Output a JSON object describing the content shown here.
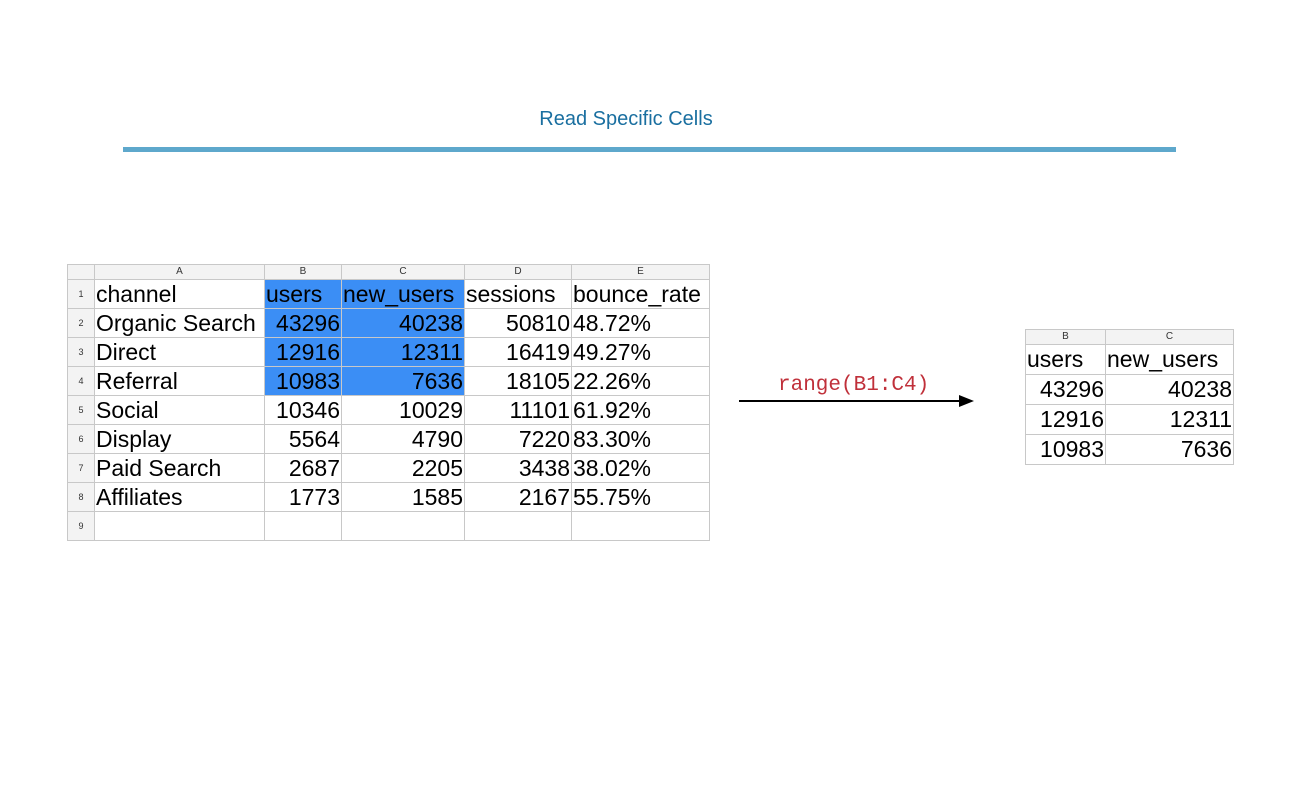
{
  "title": "Read Specific Cells",
  "colors": {
    "accent": "#5ea8cc",
    "title": "#1a6fa0",
    "selection": "#3b8ef5",
    "arrow_label": "#c0303a"
  },
  "main_sheet": {
    "col_headers": [
      "A",
      "B",
      "C",
      "D",
      "E"
    ],
    "rows": [
      {
        "n": "1",
        "cells": [
          "channel",
          "users",
          "new_users",
          "sessions",
          "bounce_rate"
        ]
      },
      {
        "n": "2",
        "cells": [
          "Organic Search",
          "43296",
          "40238",
          "50810",
          "48.72%"
        ]
      },
      {
        "n": "3",
        "cells": [
          "Direct",
          "12916",
          "12311",
          "16419",
          "49.27%"
        ]
      },
      {
        "n": "4",
        "cells": [
          "Referral",
          "10983",
          "7636",
          "18105",
          "22.26%"
        ]
      },
      {
        "n": "5",
        "cells": [
          "Social",
          "10346",
          "10029",
          "11101",
          "61.92%"
        ]
      },
      {
        "n": "6",
        "cells": [
          "Display",
          "5564",
          "4790",
          "7220",
          "83.30%"
        ]
      },
      {
        "n": "7",
        "cells": [
          "Paid Search",
          "2687",
          "2205",
          "3438",
          "38.02%"
        ]
      },
      {
        "n": "8",
        "cells": [
          "Affiliates",
          "1773",
          "1585",
          "2167",
          "55.75%"
        ]
      },
      {
        "n": "9",
        "cells": [
          "",
          "",
          "",
          "",
          ""
        ]
      }
    ]
  },
  "arrow": {
    "label": "range(B1:C4)"
  },
  "result_sheet": {
    "col_headers": [
      "B",
      "C"
    ],
    "rows": [
      [
        "users",
        "new_users"
      ],
      [
        "43296",
        "40238"
      ],
      [
        "12916",
        "12311"
      ],
      [
        "10983",
        "7636"
      ]
    ]
  }
}
